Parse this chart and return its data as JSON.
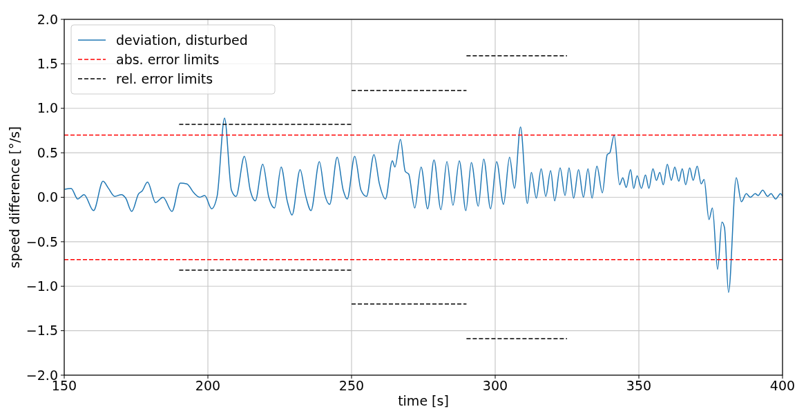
{
  "chart_data": {
    "type": "line",
    "xlabel": "time [s]",
    "ylabel": "speed difference [°/s]",
    "xlim": [
      150,
      400
    ],
    "xticks": [
      150,
      200,
      250,
      300,
      350,
      400
    ],
    "ylim": [
      -2,
      2
    ],
    "yticks": [
      {
        "value": -2,
        "label": "−2.0"
      },
      {
        "value": -1.5,
        "label": "−1.5"
      },
      {
        "value": -1,
        "label": "−1.0"
      },
      {
        "value": -0.5,
        "label": "−0.5"
      },
      {
        "value": 0,
        "label": "0.0"
      },
      {
        "value": 0.5,
        "label": "0.5"
      },
      {
        "value": 1,
        "label": "1.0"
      },
      {
        "value": 1.5,
        "label": "1.5"
      },
      {
        "value": 2,
        "label": "2.0"
      }
    ],
    "grid": true,
    "legend": "top left",
    "series": [
      {
        "name": "deviation, disturbed",
        "color": "#1f77b4",
        "line_style": "solid",
        "x": [
          150.1,
          152.4,
          154.7,
          156.9,
          160.2,
          163.5,
          165.4,
          167.6,
          169.9,
          171.4,
          173.5,
          175.9,
          177.1,
          179.0,
          181.8,
          184.4,
          187.5,
          190.4,
          192.7,
          195.1,
          197.2,
          198.9,
          201.3,
          203.2,
          205.8,
          208.2,
          209.8,
          212.7,
          214.8,
          216.5,
          219.1,
          221.2,
          223.2,
          225.5,
          227.6,
          229.3,
          232.1,
          234.0,
          235.9,
          238.8,
          240.7,
          242.4,
          245.0,
          247.1,
          248.5,
          251.1,
          253.3,
          255.2,
          257.8,
          259.7,
          261.8,
          264.2,
          265.1,
          267.0,
          268.7,
          269.9,
          272.0,
          274.2,
          276.5,
          278.7,
          281.1,
          283.2,
          285.3,
          287.5,
          289.8,
          291.7,
          294.1,
          296.0,
          298.4,
          300.5,
          302.9,
          305.0,
          306.7,
          308.8,
          311.2,
          312.6,
          314.3,
          316.0,
          317.6,
          319.3,
          320.7,
          322.6,
          324.3,
          325.7,
          327.3,
          329.0,
          330.7,
          332.3,
          333.7,
          335.4,
          337.3,
          339.0,
          339.9,
          341.4,
          343.3,
          344.4,
          345.6,
          347.1,
          348.2,
          349.4,
          350.9,
          352.3,
          353.5,
          354.9,
          356.1,
          357.3,
          358.5,
          359.9,
          361.3,
          362.5,
          363.9,
          365.1,
          366.3,
          367.7,
          368.9,
          370.3,
          371.7,
          372.7,
          374.4,
          375.6,
          377.4,
          378.9,
          379.8,
          381.2,
          383.9,
          385.7,
          387.4,
          388.8,
          390.5,
          391.5,
          393.1,
          394.8,
          396.0,
          397.6,
          399.3,
          400
        ],
        "values": [
          0.09,
          0.1,
          -0.02,
          0.03,
          -0.15,
          0.18,
          0.1,
          0.01,
          0.03,
          -0.01,
          -0.16,
          0.04,
          0.07,
          0.17,
          -0.06,
          0.0,
          -0.16,
          0.16,
          0.15,
          0.05,
          0.0,
          0.02,
          -0.13,
          0.01,
          0.89,
          0.08,
          0.01,
          0.46,
          0.07,
          -0.04,
          0.37,
          0.0,
          -0.12,
          0.34,
          -0.04,
          -0.2,
          0.31,
          0.02,
          -0.15,
          0.4,
          0.03,
          -0.08,
          0.45,
          0.08,
          -0.02,
          0.46,
          0.08,
          0.01,
          0.48,
          0.15,
          -0.02,
          0.41,
          0.34,
          0.65,
          0.29,
          0.26,
          -0.12,
          0.34,
          -0.13,
          0.42,
          -0.14,
          0.4,
          -0.09,
          0.41,
          -0.15,
          0.39,
          -0.1,
          0.43,
          -0.13,
          0.4,
          -0.08,
          0.45,
          0.1,
          0.79,
          -0.07,
          0.28,
          -0.01,
          0.32,
          0.01,
          0.3,
          -0.04,
          0.33,
          0.02,
          0.33,
          -0.01,
          0.31,
          0.0,
          0.32,
          -0.01,
          0.35,
          0.05,
          0.48,
          0.5,
          0.7,
          0.14,
          0.22,
          0.11,
          0.31,
          0.1,
          0.24,
          0.1,
          0.25,
          0.1,
          0.32,
          0.19,
          0.28,
          0.14,
          0.37,
          0.19,
          0.34,
          0.18,
          0.32,
          0.14,
          0.33,
          0.19,
          0.35,
          0.15,
          0.2,
          -0.25,
          -0.12,
          -0.81,
          -0.28,
          -0.34,
          -1.07,
          0.22,
          -0.05,
          0.04,
          0.0,
          0.04,
          0.02,
          0.08,
          0.01,
          0.04,
          -0.02,
          0.04,
          0.01
        ]
      },
      {
        "name": "abs. error limits",
        "color": "#ff0000",
        "line_style": "dashed",
        "x": [
          150,
          400
        ],
        "values": [
          0.7,
          0.7
        ]
      },
      {
        "color": "#ff0000",
        "line_style": "dashed",
        "x": [
          150,
          400
        ],
        "values": [
          -0.7,
          -0.7
        ]
      },
      {
        "name": "rel. error limits",
        "color": "#000000",
        "line_style": "dashed",
        "x": [
          190,
          250
        ],
        "values": [
          0.82,
          0.82
        ]
      },
      {
        "color": "#000000",
        "line_style": "dashed",
        "x": [
          190,
          250
        ],
        "values": [
          -0.82,
          -0.82
        ]
      },
      {
        "color": "#000000",
        "line_style": "dashed",
        "x": [
          250,
          290
        ],
        "values": [
          1.2,
          1.2
        ]
      },
      {
        "color": "#000000",
        "line_style": "dashed",
        "x": [
          250,
          290
        ],
        "values": [
          -1.2,
          -1.2
        ]
      },
      {
        "color": "#000000",
        "line_style": "dashed",
        "x": [
          290,
          325
        ],
        "values": [
          1.59,
          1.59
        ]
      },
      {
        "color": "#000000",
        "line_style": "dashed",
        "x": [
          290,
          325
        ],
        "values": [
          -1.59,
          -1.59
        ]
      }
    ]
  }
}
